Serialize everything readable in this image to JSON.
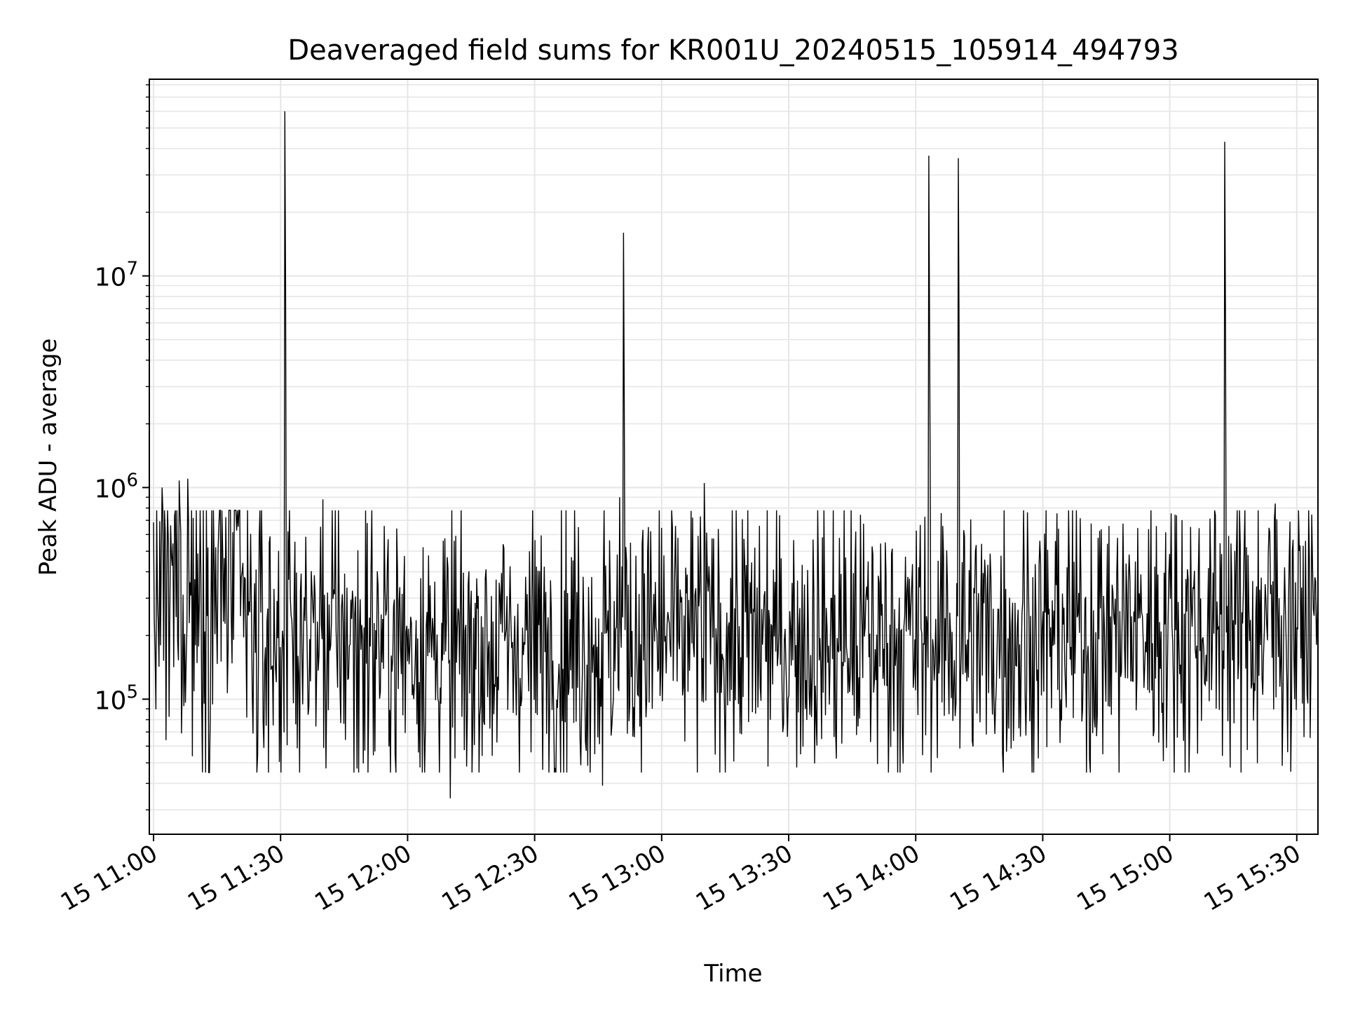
{
  "chart_data": {
    "type": "line",
    "title": "Deaveraged field sums for KR001U_20240515_105914_494793",
    "xlabel": "Time",
    "ylabel": "Peak ADU - average",
    "x_start": "2024-05-15 11:00",
    "x_end": "2024-05-15 15:35",
    "xlim": [
      "2024-05-15 10:59",
      "2024-05-15 15:35"
    ],
    "x_ticks": [
      {
        "label": "15 11:00",
        "time": "2024-05-15 11:00"
      },
      {
        "label": "15 11:30",
        "time": "2024-05-15 11:30"
      },
      {
        "label": "15 12:00",
        "time": "2024-05-15 12:00"
      },
      {
        "label": "15 12:30",
        "time": "2024-05-15 12:30"
      },
      {
        "label": "15 13:00",
        "time": "2024-05-15 13:00"
      },
      {
        "label": "15 13:30",
        "time": "2024-05-15 13:30"
      },
      {
        "label": "15 14:00",
        "time": "2024-05-15 14:00"
      },
      {
        "label": "15 14:30",
        "time": "2024-05-15 14:30"
      },
      {
        "label": "15 15:00",
        "time": "2024-05-15 15:00"
      },
      {
        "label": "15 15:30",
        "time": "2024-05-15 15:30"
      }
    ],
    "y_scale": "log",
    "ylim": [
      23000,
      85000000
    ],
    "y_ticks": [
      {
        "base": "10",
        "exp": "5",
        "value": 100000
      },
      {
        "base": "10",
        "exp": "6",
        "value": 1000000
      },
      {
        "base": "10",
        "exp": "7",
        "value": 10000000
      }
    ],
    "grid": true,
    "line_color": "#000000",
    "grid_color": "#e6e6e6",
    "series": [
      {
        "baseline": [
          {
            "time": "2024-05-15 11:00",
            "value": 300000
          },
          {
            "time": "2024-05-15 11:20",
            "value": 380000
          },
          {
            "time": "2024-05-15 11:23",
            "value": 180000
          },
          {
            "time": "2024-05-15 11:45",
            "value": 200000
          },
          {
            "time": "2024-05-15 12:10",
            "value": 170000
          },
          {
            "time": "2024-05-15 13:00",
            "value": 200000
          },
          {
            "time": "2024-05-15 14:00",
            "value": 190000
          },
          {
            "time": "2024-05-15 15:00",
            "value": 220000
          },
          {
            "time": "2024-05-15 15:35",
            "value": 240000
          }
        ],
        "spikes": [
          {
            "time": "2024-05-15 11:31",
            "value": 60000000
          },
          {
            "time": "2024-05-15 12:51",
            "value": 16000000
          },
          {
            "time": "2024-05-15 13:10",
            "value": 1050000
          },
          {
            "time": "2024-05-15 14:03",
            "value": 37000000
          },
          {
            "time": "2024-05-15 14:10",
            "value": 36000000
          },
          {
            "time": "2024-05-15 15:13",
            "value": 43000000
          },
          {
            "time": "2024-05-15 11:02",
            "value": 1000000
          },
          {
            "time": "2024-05-15 11:06",
            "value": 1080000
          },
          {
            "time": "2024-05-15 11:08",
            "value": 1100000
          },
          {
            "time": "2024-05-15 11:40",
            "value": 880000
          },
          {
            "time": "2024-05-15 12:50",
            "value": 900000
          },
          {
            "time": "2024-05-15 15:25",
            "value": 840000
          }
        ],
        "dips": [
          {
            "time": "2024-05-15 12:10",
            "value": 34000
          },
          {
            "time": "2024-05-15 12:46",
            "value": 39000
          },
          {
            "time": "2024-05-15 11:48",
            "value": 47000
          },
          {
            "time": "2024-05-15 12:14",
            "value": 48000
          },
          {
            "time": "2024-05-15 14:41",
            "value": 52000
          },
          {
            "time": "2024-05-15 11:03",
            "value": 64000
          }
        ]
      }
    ]
  }
}
